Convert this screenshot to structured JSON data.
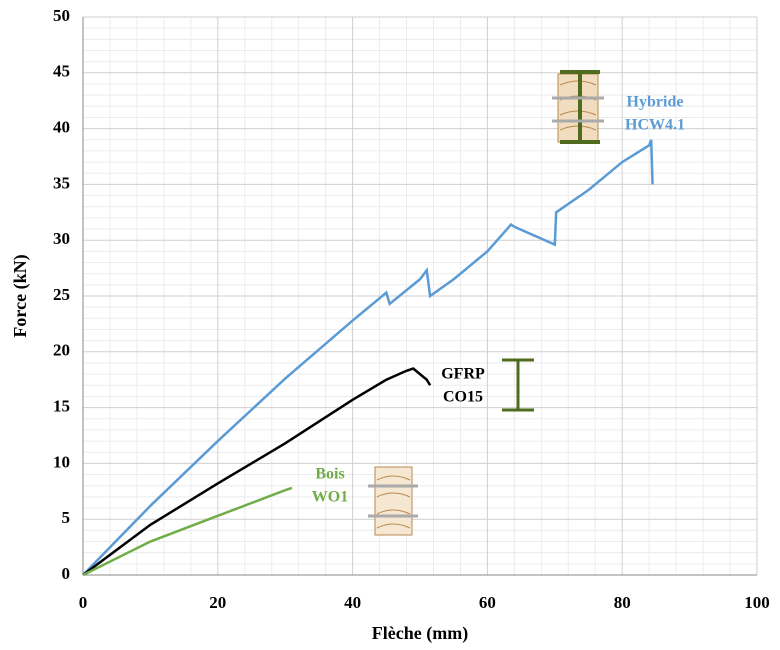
{
  "chart_data": {
    "type": "line",
    "xlabel": "Flèche (mm)",
    "ylabel": "Force (kN)",
    "xlim": [
      0,
      100
    ],
    "xticks": [
      0,
      20,
      40,
      60,
      80,
      100
    ],
    "ylim": [
      0,
      50
    ],
    "yticks": [
      0,
      5,
      10,
      15,
      20,
      25,
      30,
      35,
      40,
      45,
      50
    ],
    "grid": true,
    "minor_grid": true,
    "series": [
      {
        "label": [
          "Hybride",
          "HCW4.1"
        ],
        "color": "#5b9bd5",
        "x": [
          0,
          10,
          20,
          30,
          40,
          45,
          45.5,
          50,
          51,
          51.5,
          55,
          60,
          63.5,
          64,
          70,
          70.2,
          75,
          80,
          84,
          84.3,
          84.5
        ],
        "values": [
          0,
          6.2,
          12,
          17.6,
          22.8,
          25.3,
          24.3,
          26.5,
          27.3,
          25,
          26.5,
          29,
          31.4,
          31.2,
          29.6,
          32.5,
          34.5,
          37,
          38.5,
          39,
          35
        ]
      },
      {
        "label": [
          "GFRP",
          "CO15"
        ],
        "color": "#000000",
        "x": [
          0,
          10,
          20,
          30,
          40,
          45,
          48,
          49,
          50,
          51,
          51.5
        ],
        "values": [
          0,
          4.5,
          8.2,
          11.8,
          15.7,
          17.5,
          18.3,
          18.5,
          18,
          17.5,
          17
        ]
      },
      {
        "label": [
          "Bois",
          "WO1"
        ],
        "color": "#70ad47",
        "x": [
          0,
          10,
          20,
          30,
          31
        ],
        "values": [
          0,
          3,
          5.3,
          7.6,
          7.8
        ]
      }
    ]
  }
}
